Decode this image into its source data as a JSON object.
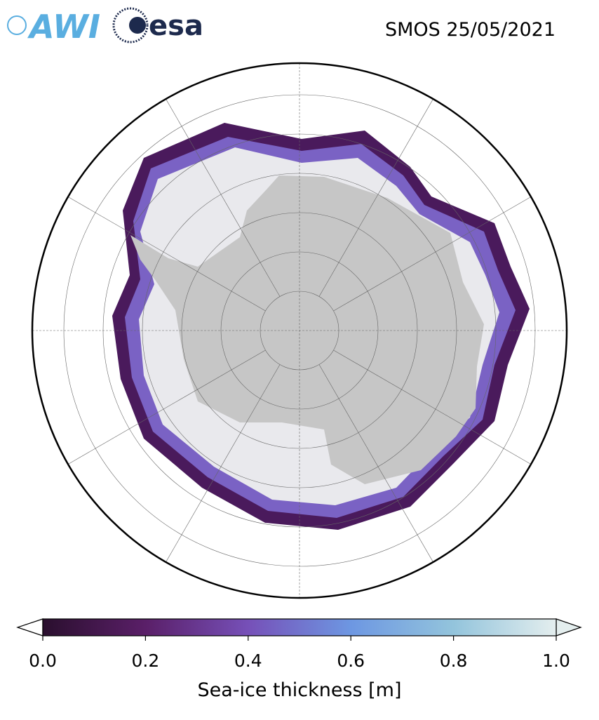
{
  "header": {
    "title": "SMOS 25/05/2021",
    "logos": [
      "AWI",
      "esa"
    ]
  },
  "colorbar": {
    "label": "Sea-ice thickness [m]",
    "lim": [
      0,
      1
    ],
    "ticks": [
      {
        "value": 0,
        "label": "0.0"
      },
      {
        "value": 0.2,
        "label": "0.2"
      },
      {
        "value": 0.4,
        "label": "0.4"
      },
      {
        "value": 0.6,
        "label": "0.6"
      },
      {
        "value": 0.8,
        "label": "0.8"
      },
      {
        "value": 1,
        "label": "1.0"
      }
    ]
  }
}
